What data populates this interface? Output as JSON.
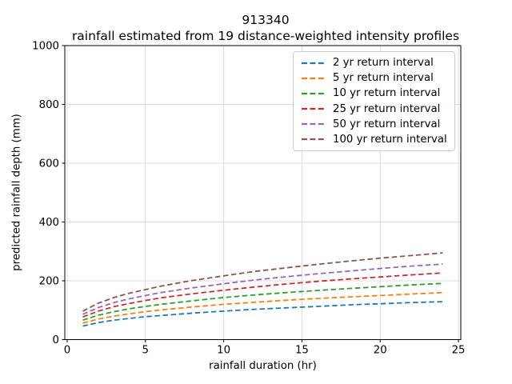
{
  "chart_data": {
    "type": "line",
    "title": "913340",
    "subtitle": "rainfall estimated from 19 distance-weighted intensity profiles",
    "xlabel": "rainfall duration (hr)",
    "ylabel": "predicted rainfall depth (mm)",
    "xlim": [
      -0.15,
      25.15
    ],
    "ylim": [
      0,
      1000
    ],
    "xticks": [
      0,
      5,
      10,
      15,
      20,
      25
    ],
    "yticks": [
      0,
      200,
      400,
      600,
      800,
      1000
    ],
    "grid": true,
    "grid_color": "#dcdcdc",
    "axis_color": "#000000",
    "line_style": "dashed",
    "legend_position": "upper right",
    "x": [
      1,
      2,
      3,
      4,
      5,
      6,
      8,
      10,
      12,
      14,
      16,
      18,
      20,
      22,
      24
    ],
    "series": [
      {
        "name": "2 yr return interval",
        "color": "#1f77b4",
        "values": [
          46,
          58,
          66,
          72,
          78,
          82,
          90,
          97,
          103,
          108,
          113,
          118,
          122,
          126,
          129
        ]
      },
      {
        "name": "5 yr return interval",
        "color": "#ff7f0e",
        "values": [
          56,
          70,
          80,
          88,
          95,
          101,
          111,
          120,
          127,
          134,
          140,
          145,
          150,
          155,
          160
        ]
      },
      {
        "name": "10 yr return interval",
        "color": "#2ca02c",
        "values": [
          66,
          83,
          95,
          105,
          113,
          120,
          132,
          143,
          152,
          160,
          167,
          174,
          180,
          186,
          191
        ]
      },
      {
        "name": "25 yr return interval",
        "color": "#d62728",
        "values": [
          77,
          97,
          112,
          123,
          133,
          142,
          156,
          168,
          179,
          189,
          198,
          206,
          213,
          220,
          227
        ]
      },
      {
        "name": "50 yr return interval",
        "color": "#9467bd",
        "values": [
          86,
          109,
          126,
          139,
          150,
          160,
          176,
          190,
          203,
          214,
          224,
          233,
          242,
          250,
          257
        ]
      },
      {
        "name": "100 yr return interval",
        "color": "#8c564b",
        "values": [
          97,
          124,
          143,
          158,
          170,
          182,
          201,
          217,
          232,
          244,
          256,
          267,
          277,
          286,
          295
        ]
      }
    ]
  }
}
